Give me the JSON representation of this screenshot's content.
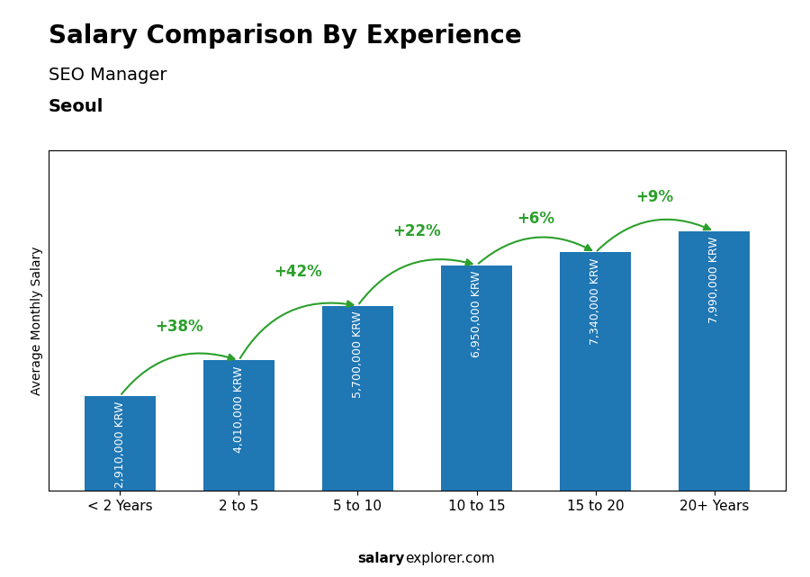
{
  "chart_data": {
    "type": "bar",
    "title": "Salary Comparison By Experience",
    "subtitle": "SEO Manager",
    "city": "Seoul",
    "ylabel": "Average Monthly Salary",
    "footer": [
      "salary",
      "explorer.com"
    ],
    "categories": [
      "< 2 Years",
      "2 to 5",
      "5 to 10",
      "10 to 15",
      "15 to 20",
      "20+ Years"
    ],
    "values": [
      2910000,
      4010000,
      5700000,
      6950000,
      7340000,
      7990000
    ],
    "data_labels": true,
    "value_labels": [
      "2,910,000 KRW",
      "4,010,000 KRW",
      "5,700,000 KRW",
      "6,950,000 KRW",
      "7,340,000 KRW",
      "7,990,000 KRW"
    ],
    "annotations": [
      null,
      "+38%",
      "+42%",
      "+22%",
      "+6%",
      "+9%"
    ],
    "ylim": [
      0,
      10500000
    ],
    "tick_labels": "x",
    "grid": false
  }
}
